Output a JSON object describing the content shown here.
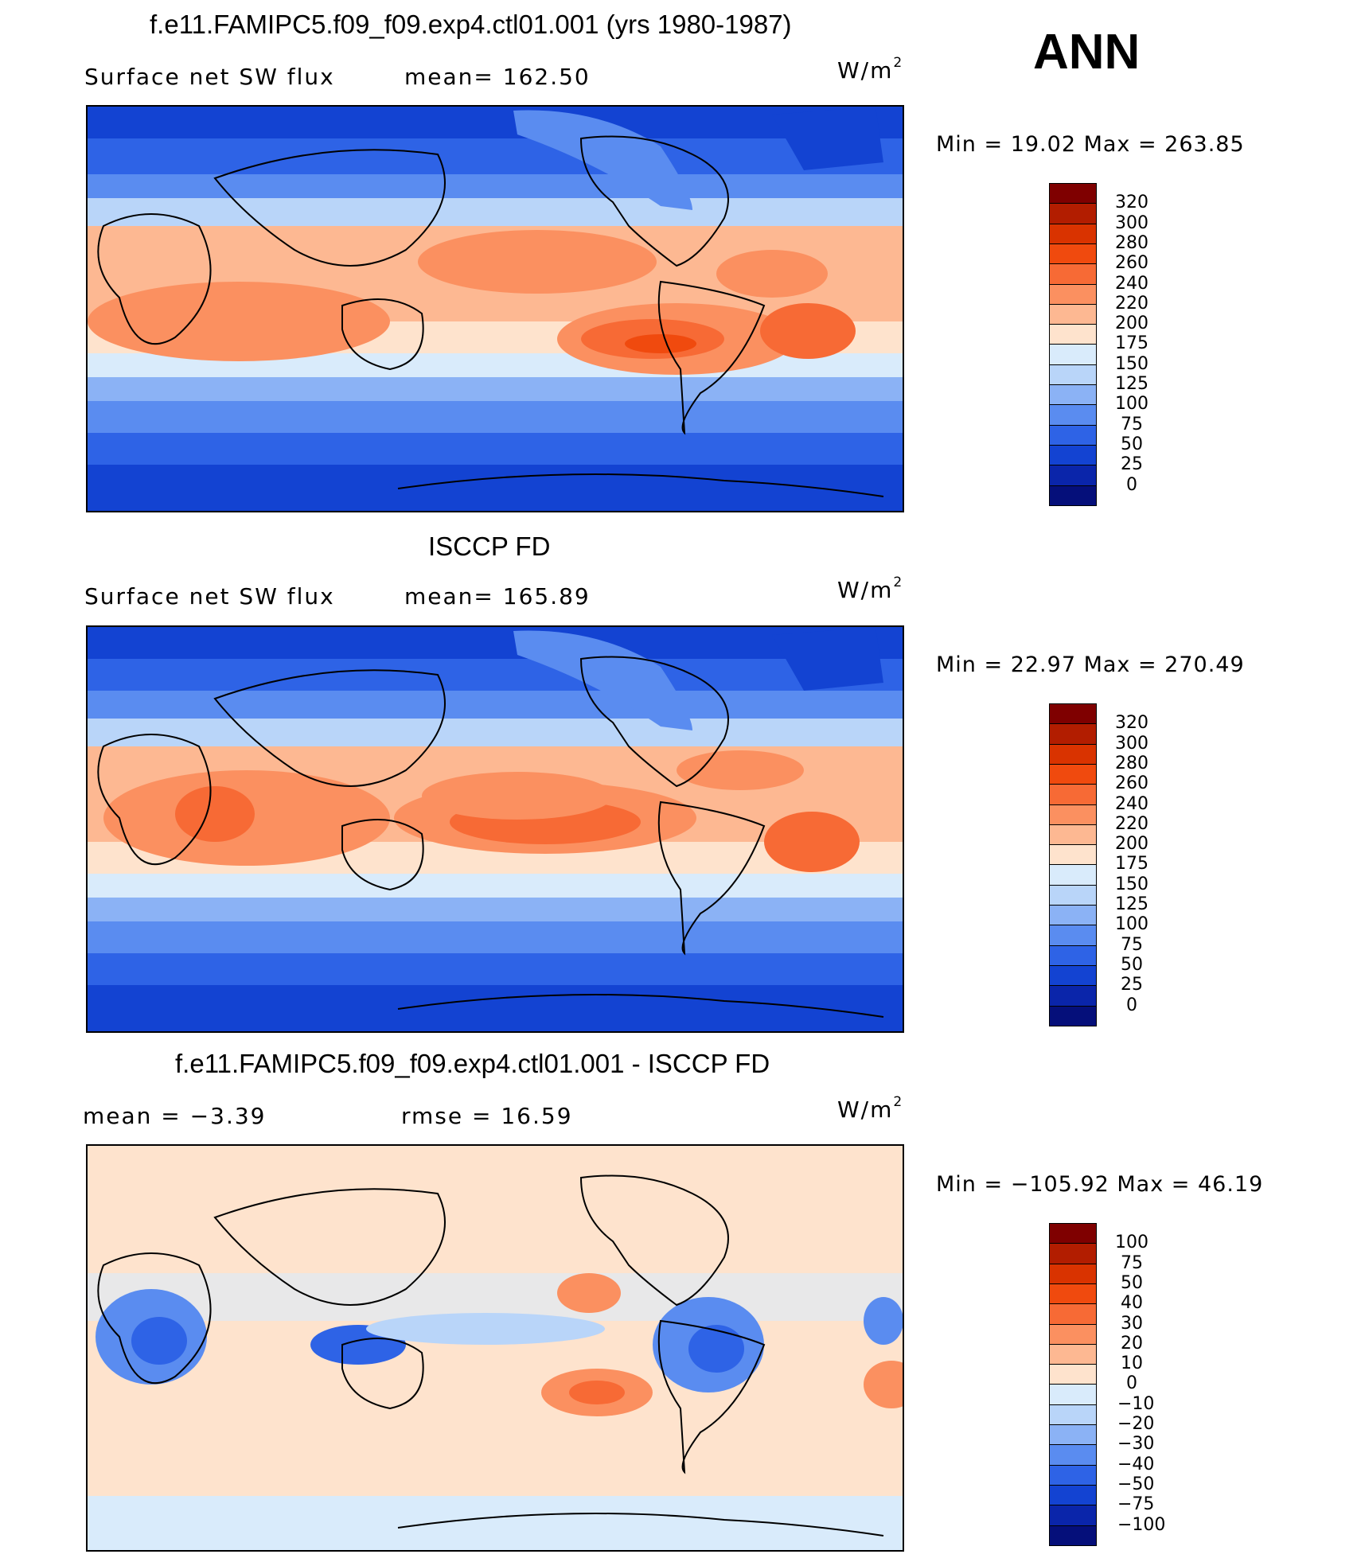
{
  "season": "ANN",
  "panels": [
    {
      "title": "f.e11.FAMIPC5.f09_f09.exp4.ctl01.001 (yrs 1980-1987)",
      "left_text": "Surface  net  SW  flux",
      "center_text": "mean=  162.50",
      "units_base": "W/m",
      "units_sup": "2",
      "minmax": "Min  =    19.02  Max  =  263.85",
      "colorbar": {
        "labels": [
          "320",
          "300",
          "280",
          "260",
          "240",
          "220",
          "200",
          "175",
          "150",
          "125",
          "100",
          "75",
          "50",
          "25",
          "0"
        ],
        "colors": [
          "#7f0000",
          "#b21d00",
          "#d93300",
          "#f04a0e",
          "#f76a35",
          "#fb9060",
          "#fdb892",
          "#fee3cd",
          "#d9ebfb",
          "#b9d5f9",
          "#8bb2f5",
          "#5a8cf0",
          "#2e63e6",
          "#1343d2",
          "#0a25aa",
          "#050f7a"
        ]
      }
    },
    {
      "title": "ISCCP FD",
      "left_text": "Surface  net  SW  flux",
      "center_text": "mean=  165.89",
      "units_base": "W/m",
      "units_sup": "2",
      "minmax": "Min  =    22.97  Max  =  270.49",
      "colorbar": {
        "labels": [
          "320",
          "300",
          "280",
          "260",
          "240",
          "220",
          "200",
          "175",
          "150",
          "125",
          "100",
          "75",
          "50",
          "25",
          "0"
        ],
        "colors": [
          "#7f0000",
          "#b21d00",
          "#d93300",
          "#f04a0e",
          "#f76a35",
          "#fb9060",
          "#fdb892",
          "#fee3cd",
          "#d9ebfb",
          "#b9d5f9",
          "#8bb2f5",
          "#5a8cf0",
          "#2e63e6",
          "#1343d2",
          "#0a25aa",
          "#050f7a"
        ]
      }
    },
    {
      "title": "f.e11.FAMIPC5.f09_f09.exp4.ctl01.001 - ISCCP FD",
      "left_text": "mean  =    −3.39",
      "center_text": "rmse  =    16.59",
      "units_base": "W/m",
      "units_sup": "2",
      "minmax": "Min  = −105.92  Max  =    46.19",
      "colorbar": {
        "labels": [
          "100",
          "75",
          "50",
          "40",
          "30",
          "20",
          "10",
          "0",
          "−10",
          "−20",
          "−30",
          "−40",
          "−50",
          "−75",
          "−100"
        ],
        "colors": [
          "#7f0000",
          "#b21d00",
          "#d93300",
          "#f04a0e",
          "#f76a35",
          "#fb9060",
          "#fdb892",
          "#fee3cd",
          "#d9ebfb",
          "#b9d5f9",
          "#8bb2f5",
          "#5a8cf0",
          "#2e63e6",
          "#1343d2",
          "#0a25aa",
          "#050f7a"
        ]
      }
    }
  ]
}
